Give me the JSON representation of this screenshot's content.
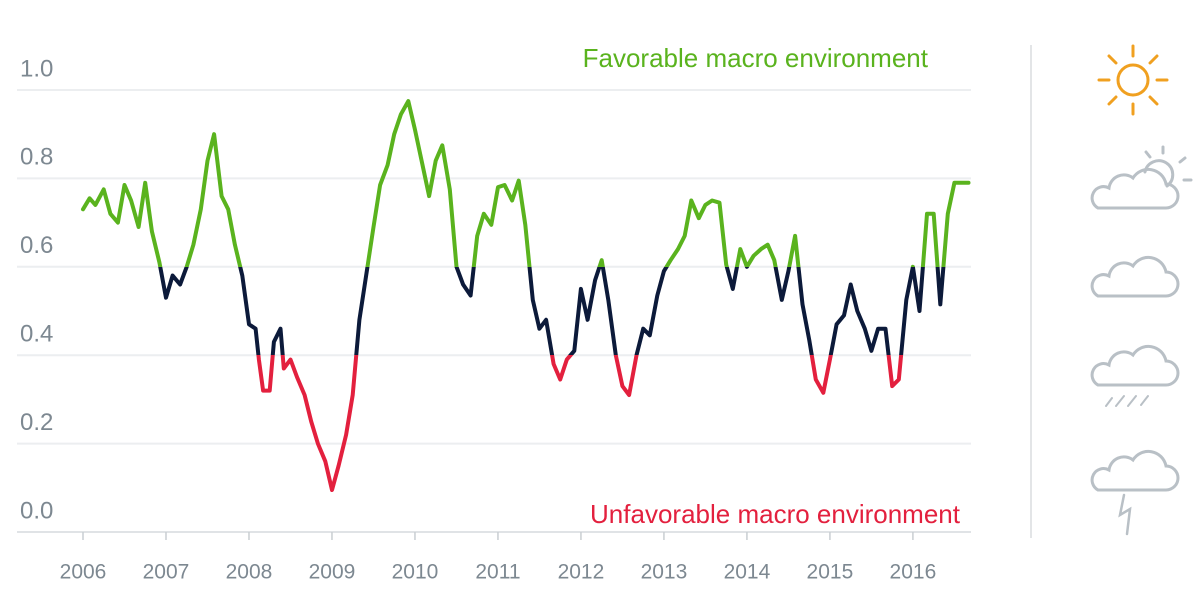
{
  "chart_data": {
    "type": "line",
    "annotations": [
      {
        "text": "Favorable macro environment",
        "color": "#5ab31e"
      },
      {
        "text": "Unfavorable macro environment",
        "color": "#e3203e"
      }
    ],
    "x": [
      2006.0,
      2006.08,
      2006.15,
      2006.25,
      2006.33,
      2006.42,
      2006.5,
      2006.58,
      2006.67,
      2006.75,
      2006.83,
      2006.92,
      2007.0,
      2007.08,
      2007.17,
      2007.25,
      2007.33,
      2007.42,
      2007.5,
      2007.58,
      2007.67,
      2007.75,
      2007.83,
      2007.92,
      2008.0,
      2008.08,
      2008.12,
      2008.17,
      2008.25,
      2008.3,
      2008.38,
      2008.42,
      2008.5,
      2008.58,
      2008.67,
      2008.75,
      2008.83,
      2008.92,
      2009.0,
      2009.08,
      2009.17,
      2009.25,
      2009.33,
      2009.42,
      2009.5,
      2009.58,
      2009.67,
      2009.75,
      2009.83,
      2009.92,
      2010.0,
      2010.08,
      2010.17,
      2010.25,
      2010.33,
      2010.42,
      2010.5,
      2010.58,
      2010.67,
      2010.75,
      2010.83,
      2010.92,
      2011.0,
      2011.08,
      2011.17,
      2011.25,
      2011.33,
      2011.42,
      2011.5,
      2011.58,
      2011.67,
      2011.75,
      2011.83,
      2011.92,
      2012.0,
      2012.08,
      2012.17,
      2012.25,
      2012.33,
      2012.42,
      2012.5,
      2012.58,
      2012.67,
      2012.75,
      2012.83,
      2012.92,
      2013.0,
      2013.08,
      2013.17,
      2013.25,
      2013.33,
      2013.42,
      2013.5,
      2013.58,
      2013.67,
      2013.75,
      2013.83,
      2013.92,
      2014.0,
      2014.08,
      2014.17,
      2014.25,
      2014.33,
      2014.42,
      2014.5,
      2014.58,
      2014.67,
      2014.75,
      2014.83,
      2014.92,
      2015.0,
      2015.08,
      2015.17,
      2015.25,
      2015.33,
      2015.42,
      2015.5,
      2015.58,
      2015.67,
      2015.75,
      2015.83,
      2015.92,
      2016.0,
      2016.08,
      2016.17,
      2016.25,
      2016.33,
      2016.42,
      2016.5,
      2016.67
    ],
    "series": [
      {
        "colors": [
          "#e3203e",
          "#0c1a3a",
          "#5ab31e"
        ],
        "values": [
          0.73,
          0.755,
          0.74,
          0.775,
          0.72,
          0.7,
          0.785,
          0.75,
          0.69,
          0.79,
          0.68,
          0.61,
          0.53,
          0.58,
          0.56,
          0.6,
          0.65,
          0.73,
          0.84,
          0.9,
          0.76,
          0.73,
          0.65,
          0.58,
          0.47,
          0.46,
          0.39,
          0.32,
          0.32,
          0.43,
          0.46,
          0.37,
          0.39,
          0.35,
          0.31,
          0.25,
          0.2,
          0.16,
          0.095,
          0.15,
          0.22,
          0.31,
          0.48,
          0.59,
          0.69,
          0.785,
          0.83,
          0.9,
          0.945,
          0.975,
          0.91,
          0.84,
          0.76,
          0.84,
          0.875,
          0.775,
          0.6,
          0.56,
          0.535,
          0.67,
          0.72,
          0.695,
          0.78,
          0.785,
          0.75,
          0.795,
          0.695,
          0.525,
          0.46,
          0.48,
          0.38,
          0.345,
          0.39,
          0.41,
          0.55,
          0.48,
          0.57,
          0.615,
          0.525,
          0.4,
          0.33,
          0.31,
          0.4,
          0.46,
          0.445,
          0.535,
          0.59,
          0.615,
          0.64,
          0.67,
          0.75,
          0.71,
          0.74,
          0.75,
          0.745,
          0.605,
          0.55,
          0.64,
          0.6,
          0.625,
          0.64,
          0.65,
          0.615,
          0.525,
          0.59,
          0.67,
          0.515,
          0.435,
          0.345,
          0.315,
          0.39,
          0.47,
          0.49,
          0.56,
          0.5,
          0.46,
          0.41,
          0.46,
          0.46,
          0.33,
          0.345,
          0.525,
          0.6,
          0.5,
          0.72,
          0.72,
          0.515,
          0.72,
          0.79,
          0.79
        ]
      }
    ],
    "xlim": [
      2006,
      2016.7
    ],
    "xticks": [
      2006,
      2007,
      2008,
      2009,
      2010,
      2011,
      2012,
      2013,
      2014,
      2015,
      2016
    ],
    "ylim": [
      0,
      1.0
    ],
    "yticks": [
      {
        "value": 0,
        "label": "0.0"
      },
      0.2,
      0.4,
      0.6,
      0.8,
      {
        "value": 1.0,
        "label": "1.0"
      }
    ],
    "grid": true
  }
}
